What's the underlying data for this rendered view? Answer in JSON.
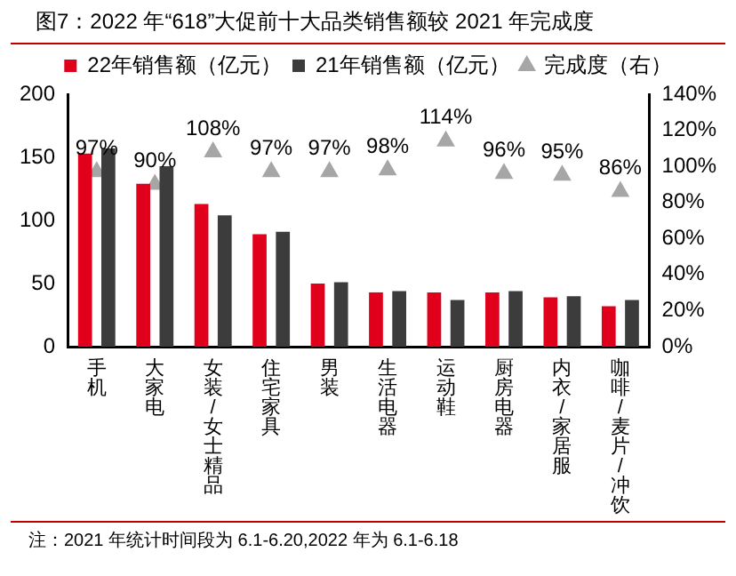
{
  "chart_data": {
    "type": "bar",
    "title": "图7：2022 年“618”大促前十大品类销售额较 2021 年完成度",
    "categories": [
      "手机",
      "大家电",
      "女装/女士精品",
      "住宅家具",
      "男装",
      "生活电器",
      "运动鞋",
      "厨房电器",
      "内衣/家居服",
      "咖啡/麦片/冲饮"
    ],
    "series": [
      {
        "name": "22年销售额（亿元）",
        "color": "#e0001b",
        "values": [
          153,
          129,
          113,
          89,
          50,
          43,
          43,
          43,
          39,
          32
        ]
      },
      {
        "name": "21年销售额（亿元）",
        "color": "#3c3c3c",
        "values": [
          157,
          143,
          104,
          91,
          51,
          44,
          37,
          44,
          40,
          37
        ]
      },
      {
        "name": "完成度（右）",
        "type": "scatter",
        "axis": "y2",
        "color": "#a6a6a6",
        "values": [
          97,
          90,
          108,
          97,
          97,
          98,
          114,
          96,
          95,
          86
        ],
        "value_labels": [
          "97%",
          "90%",
          "108%",
          "97%",
          "97%",
          "98%",
          "114%",
          "96%",
          "95%",
          "86%"
        ]
      }
    ],
    "ylim": [
      0,
      200
    ],
    "yticks": [
      0,
      50,
      100,
      150,
      200
    ],
    "y2lim": [
      0,
      140
    ],
    "y2ticks": [
      {
        "value": 0,
        "label": "0%"
      },
      {
        "value": 20,
        "label": "20%"
      },
      {
        "value": 40,
        "label": "40%"
      },
      {
        "value": 60,
        "label": "60%"
      },
      {
        "value": 80,
        "label": "80%"
      },
      {
        "value": 100,
        "label": "100%"
      },
      {
        "value": 120,
        "label": "120%"
      },
      {
        "value": 140,
        "label": "140%"
      }
    ],
    "marker": "triangle",
    "legend": "top",
    "grid": false,
    "annotations": [
      "注：2021 年统计时间段为 6.1-6.20,2022 年为 6.1-6.18"
    ]
  }
}
